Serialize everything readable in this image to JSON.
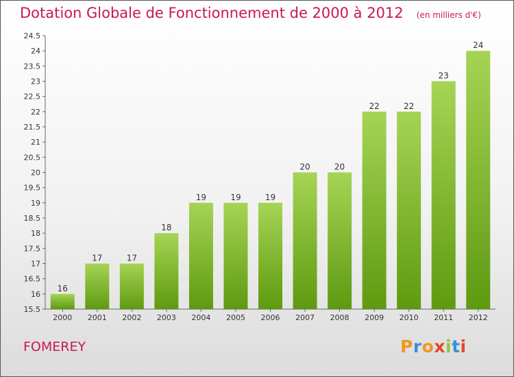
{
  "chart_title": "Dotation Globale de Fonctionnement de 2000 à 2012",
  "chart_subtitle": "(en milliers d'€)",
  "commune": "FOMEREY",
  "logo_text": "Proxiti",
  "colors": {
    "title": "#c8194e",
    "bar_light": "#a6d455",
    "bar_dark": "#5e9a10",
    "logo_letters": [
      "#f2961c",
      "#3a8fd8",
      "#f2961c",
      "#e8442a",
      "#8cc63f",
      "#3a8fd8",
      "#e8442a"
    ]
  },
  "chart_data": {
    "type": "bar",
    "title": "Dotation Globale de Fonctionnement de 2000 à 2012",
    "subtitle": "(en milliers d'€)",
    "categories": [
      "2000",
      "2001",
      "2002",
      "2003",
      "2004",
      "2005",
      "2006",
      "2007",
      "2008",
      "2009",
      "2010",
      "2011",
      "2012"
    ],
    "values": [
      16,
      17,
      17,
      18,
      19,
      19,
      19,
      20,
      20,
      22,
      22,
      23,
      24
    ],
    "ylim": [
      15.5,
      24.5
    ],
    "yticks": [
      "15.5",
      "16",
      "16.5",
      "17",
      "17.5",
      "18",
      "18.5",
      "19",
      "19.5",
      "20",
      "20.5",
      "21",
      "21.5",
      "22",
      "22.5",
      "23",
      "23.5",
      "24",
      "24.5"
    ],
    "xlabel": "",
    "ylabel": "",
    "grid": false,
    "legend": "none"
  }
}
